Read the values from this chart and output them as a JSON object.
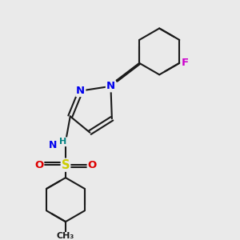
{
  "bg_color": "#eaeaea",
  "bond_color": "#1a1a1a",
  "bond_width": 1.5,
  "atoms": {
    "N_blue": "#0000ee",
    "N_teal": "#008080",
    "O_red": "#dd0000",
    "S_yellow": "#cccc00",
    "F_magenta": "#cc00cc",
    "C_black": "#1a1a1a"
  },
  "font_size": 8.5,
  "fig_size": [
    3.0,
    3.0
  ],
  "dpi": 100,
  "xlim": [
    0,
    10
  ],
  "ylim": [
    0,
    10
  ]
}
